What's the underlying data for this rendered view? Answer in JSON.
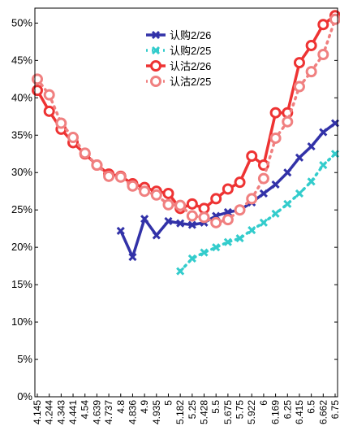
{
  "chart_data": {
    "type": "line",
    "title": "",
    "xlabel": "",
    "ylabel": "",
    "ylim": [
      0,
      52
    ],
    "yticks": [
      0,
      5,
      10,
      15,
      20,
      25,
      30,
      35,
      40,
      45,
      50
    ],
    "ytick_labels": [
      "0%",
      "5%",
      "10%",
      "15%",
      "20%",
      "25%",
      "30%",
      "35%",
      "40%",
      "45%",
      "50%"
    ],
    "categories": [
      "4.145",
      "4.244",
      "4.343",
      "4.441",
      "4.54",
      "4.639",
      "4.737",
      "4.8",
      "4.836",
      "4.9",
      "4.935",
      "5",
      "5.182",
      "5.25",
      "5.428",
      "5.5",
      "5.675",
      "5.75",
      "5.922",
      "6",
      "6.169",
      "6.25",
      "6.415",
      "6.5",
      "6.662",
      "6.75"
    ],
    "legend_position": "top-center",
    "series": [
      {
        "name": "认购2/26",
        "color": "#3232a8",
        "line_style": "solid",
        "marker": "x",
        "values": [
          null,
          null,
          null,
          null,
          null,
          null,
          null,
          22.2,
          18.7,
          23.8,
          21.6,
          23.5,
          23.2,
          23.0,
          23.3,
          24.2,
          24.7,
          25.0,
          26.0,
          27.2,
          28.4,
          30.0,
          32.0,
          33.5,
          35.4,
          36.6
        ]
      },
      {
        "name": "认购2/25",
        "color": "#33cccc",
        "line_style": "dotted",
        "marker": "x",
        "values": [
          null,
          null,
          null,
          null,
          null,
          null,
          null,
          null,
          null,
          null,
          null,
          null,
          16.8,
          18.5,
          19.3,
          20.0,
          20.7,
          21.2,
          22.3,
          23.3,
          24.5,
          25.8,
          27.2,
          28.8,
          31.0,
          32.5
        ]
      },
      {
        "name": "认沽2/26",
        "color": "#ee3333",
        "line_style": "solid",
        "marker": "o",
        "values": [
          41.0,
          38.2,
          35.8,
          34.0,
          32.5,
          31.0,
          29.8,
          29.5,
          28.5,
          28.0,
          27.5,
          27.2,
          25.2,
          25.8,
          25.2,
          26.5,
          27.8,
          28.7,
          32.2,
          31.0,
          38.0,
          38.0,
          44.7,
          47.0,
          49.8,
          51.0
        ]
      },
      {
        "name": "认沽2/25",
        "color": "#f08080",
        "line_style": "dotted",
        "marker": "o",
        "values": [
          42.5,
          40.4,
          36.6,
          34.7,
          32.6,
          31.0,
          29.5,
          29.4,
          28.2,
          27.5,
          27.0,
          25.7,
          25.6,
          24.2,
          24.0,
          23.3,
          23.7,
          25.0,
          26.5,
          29.2,
          34.6,
          36.8,
          41.5,
          43.5,
          45.8,
          50.5
        ]
      }
    ]
  }
}
